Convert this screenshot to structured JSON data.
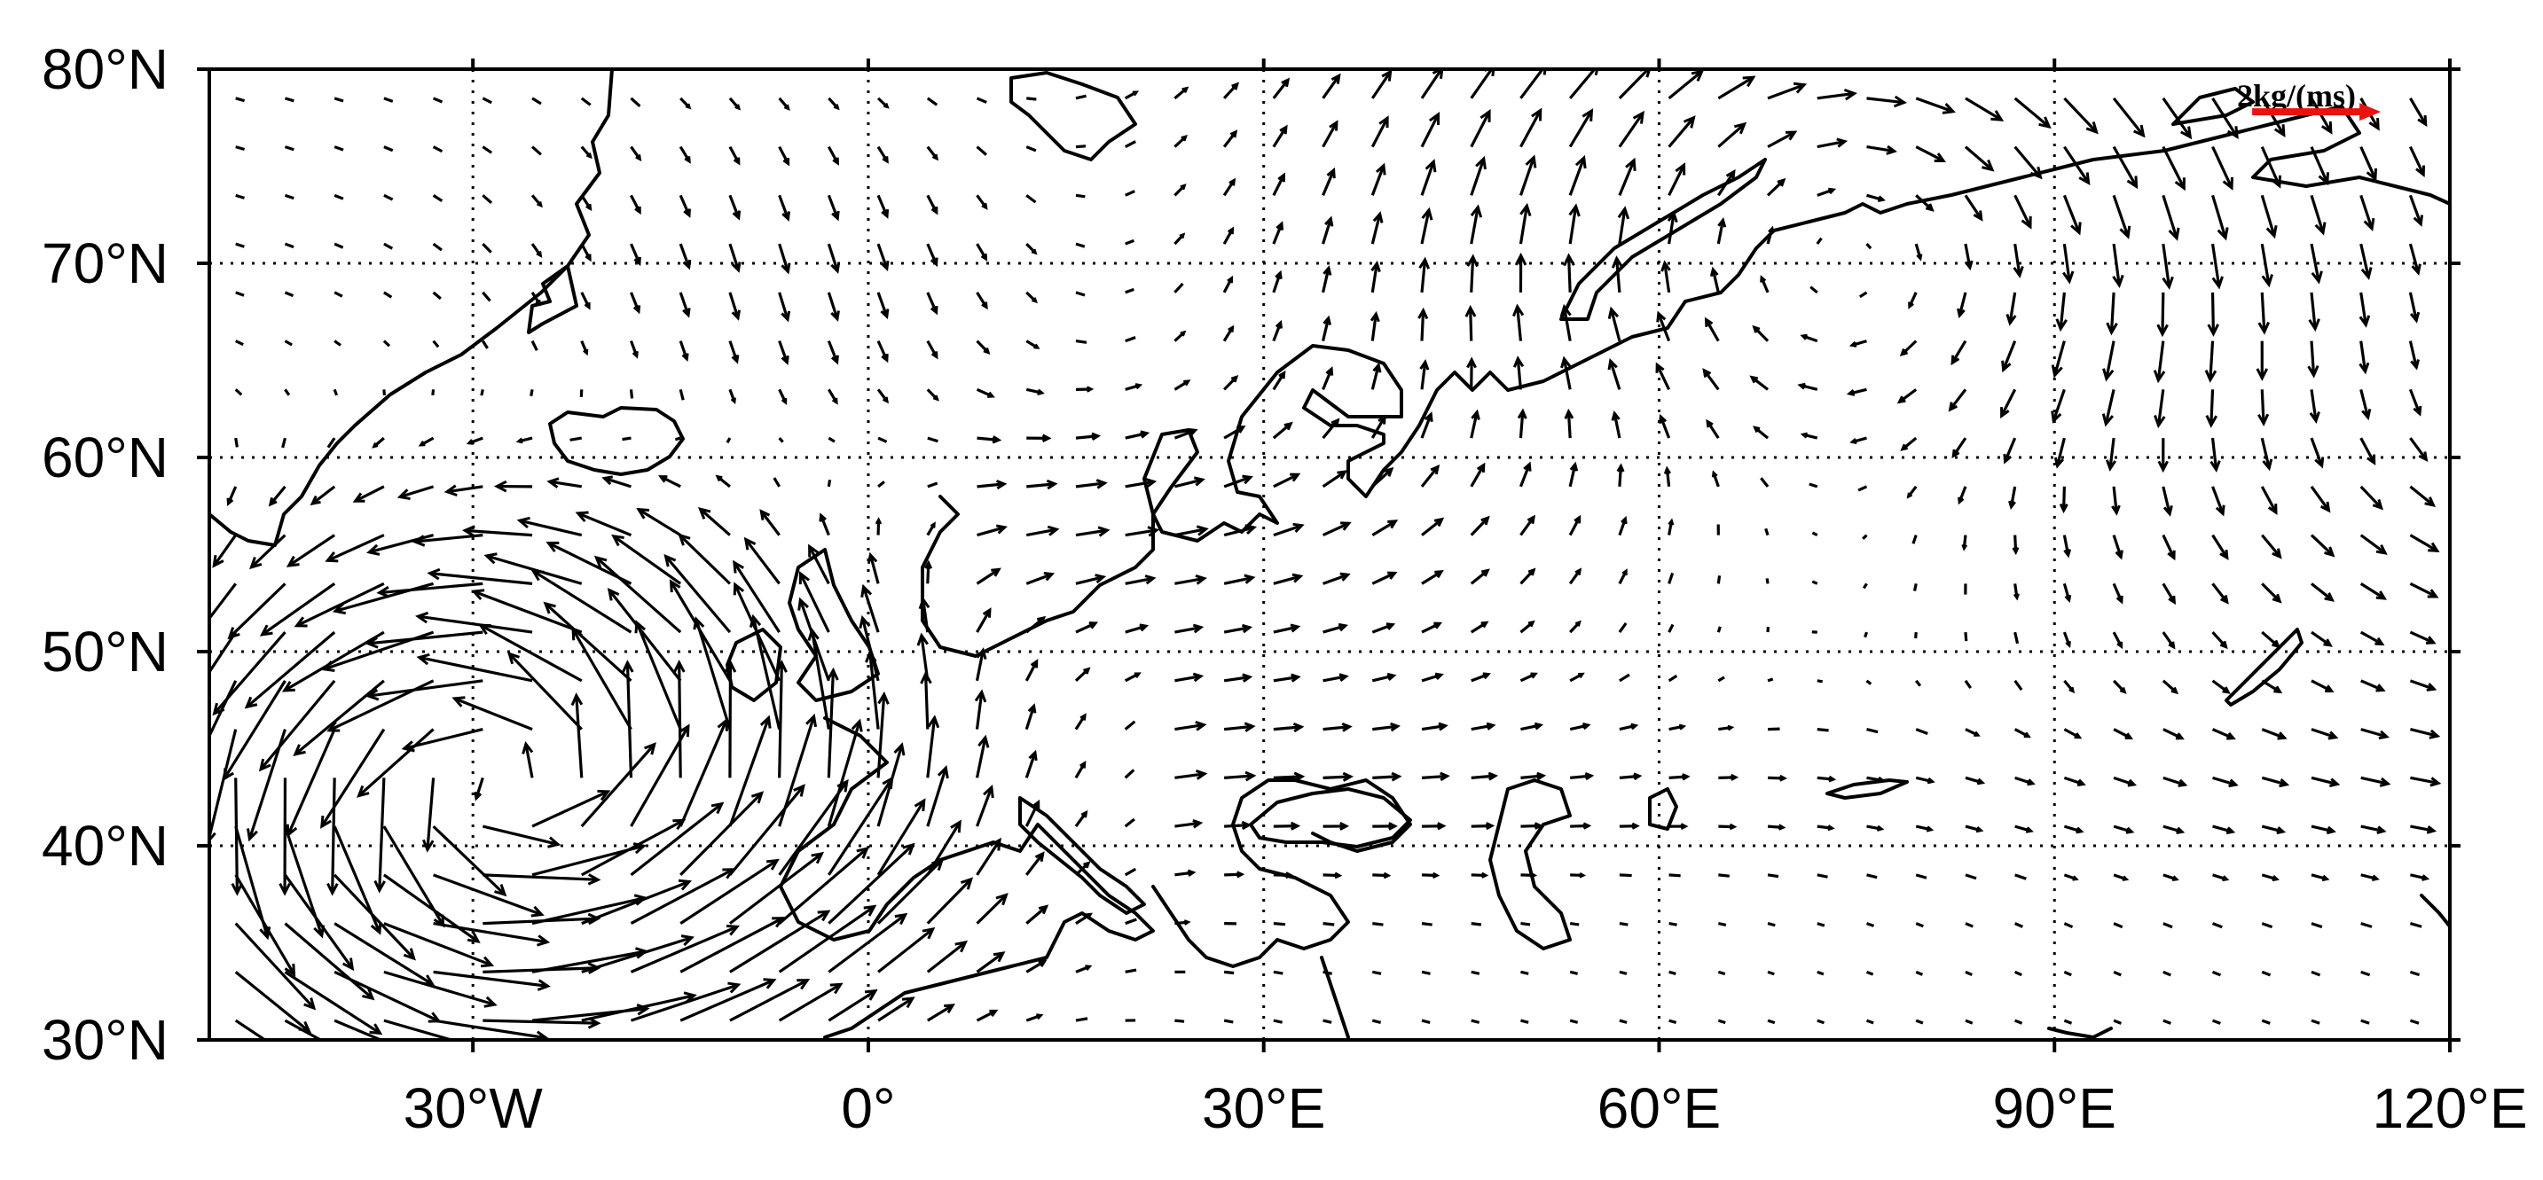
{
  "map": {
    "projection": "equirectangular",
    "lon_range": [
      -50,
      120
    ],
    "lat_range": [
      30,
      80
    ],
    "lon_grid": [
      -30,
      0,
      30,
      60,
      90,
      120
    ],
    "lat_grid": [
      30,
      40,
      50,
      60,
      70,
      80
    ],
    "x_tick_labels": [
      {
        "lon": -30,
        "text": "30°W"
      },
      {
        "lon": 0,
        "text": "0°"
      },
      {
        "lon": 30,
        "text": "30°E"
      },
      {
        "lon": 60,
        "text": "60°E"
      },
      {
        "lon": 90,
        "text": "90°E"
      },
      {
        "lon": 120,
        "text": "120°E"
      }
    ],
    "y_tick_labels": [
      {
        "lat": 80,
        "text": "80°N"
      },
      {
        "lat": 70,
        "text": "70°N"
      },
      {
        "lat": 60,
        "text": "60°N"
      },
      {
        "lat": 50,
        "text": "50°N"
      },
      {
        "lat": 40,
        "text": "40°N"
      },
      {
        "lat": 30,
        "text": "30°N"
      }
    ],
    "reference_vector": {
      "label": "2kg/(ms)",
      "magnitude": 2,
      "color": "#e8120f",
      "lon": 105,
      "lat": 77.8
    },
    "vector_color": "#000000",
    "grid_style": "dotted"
  }
}
